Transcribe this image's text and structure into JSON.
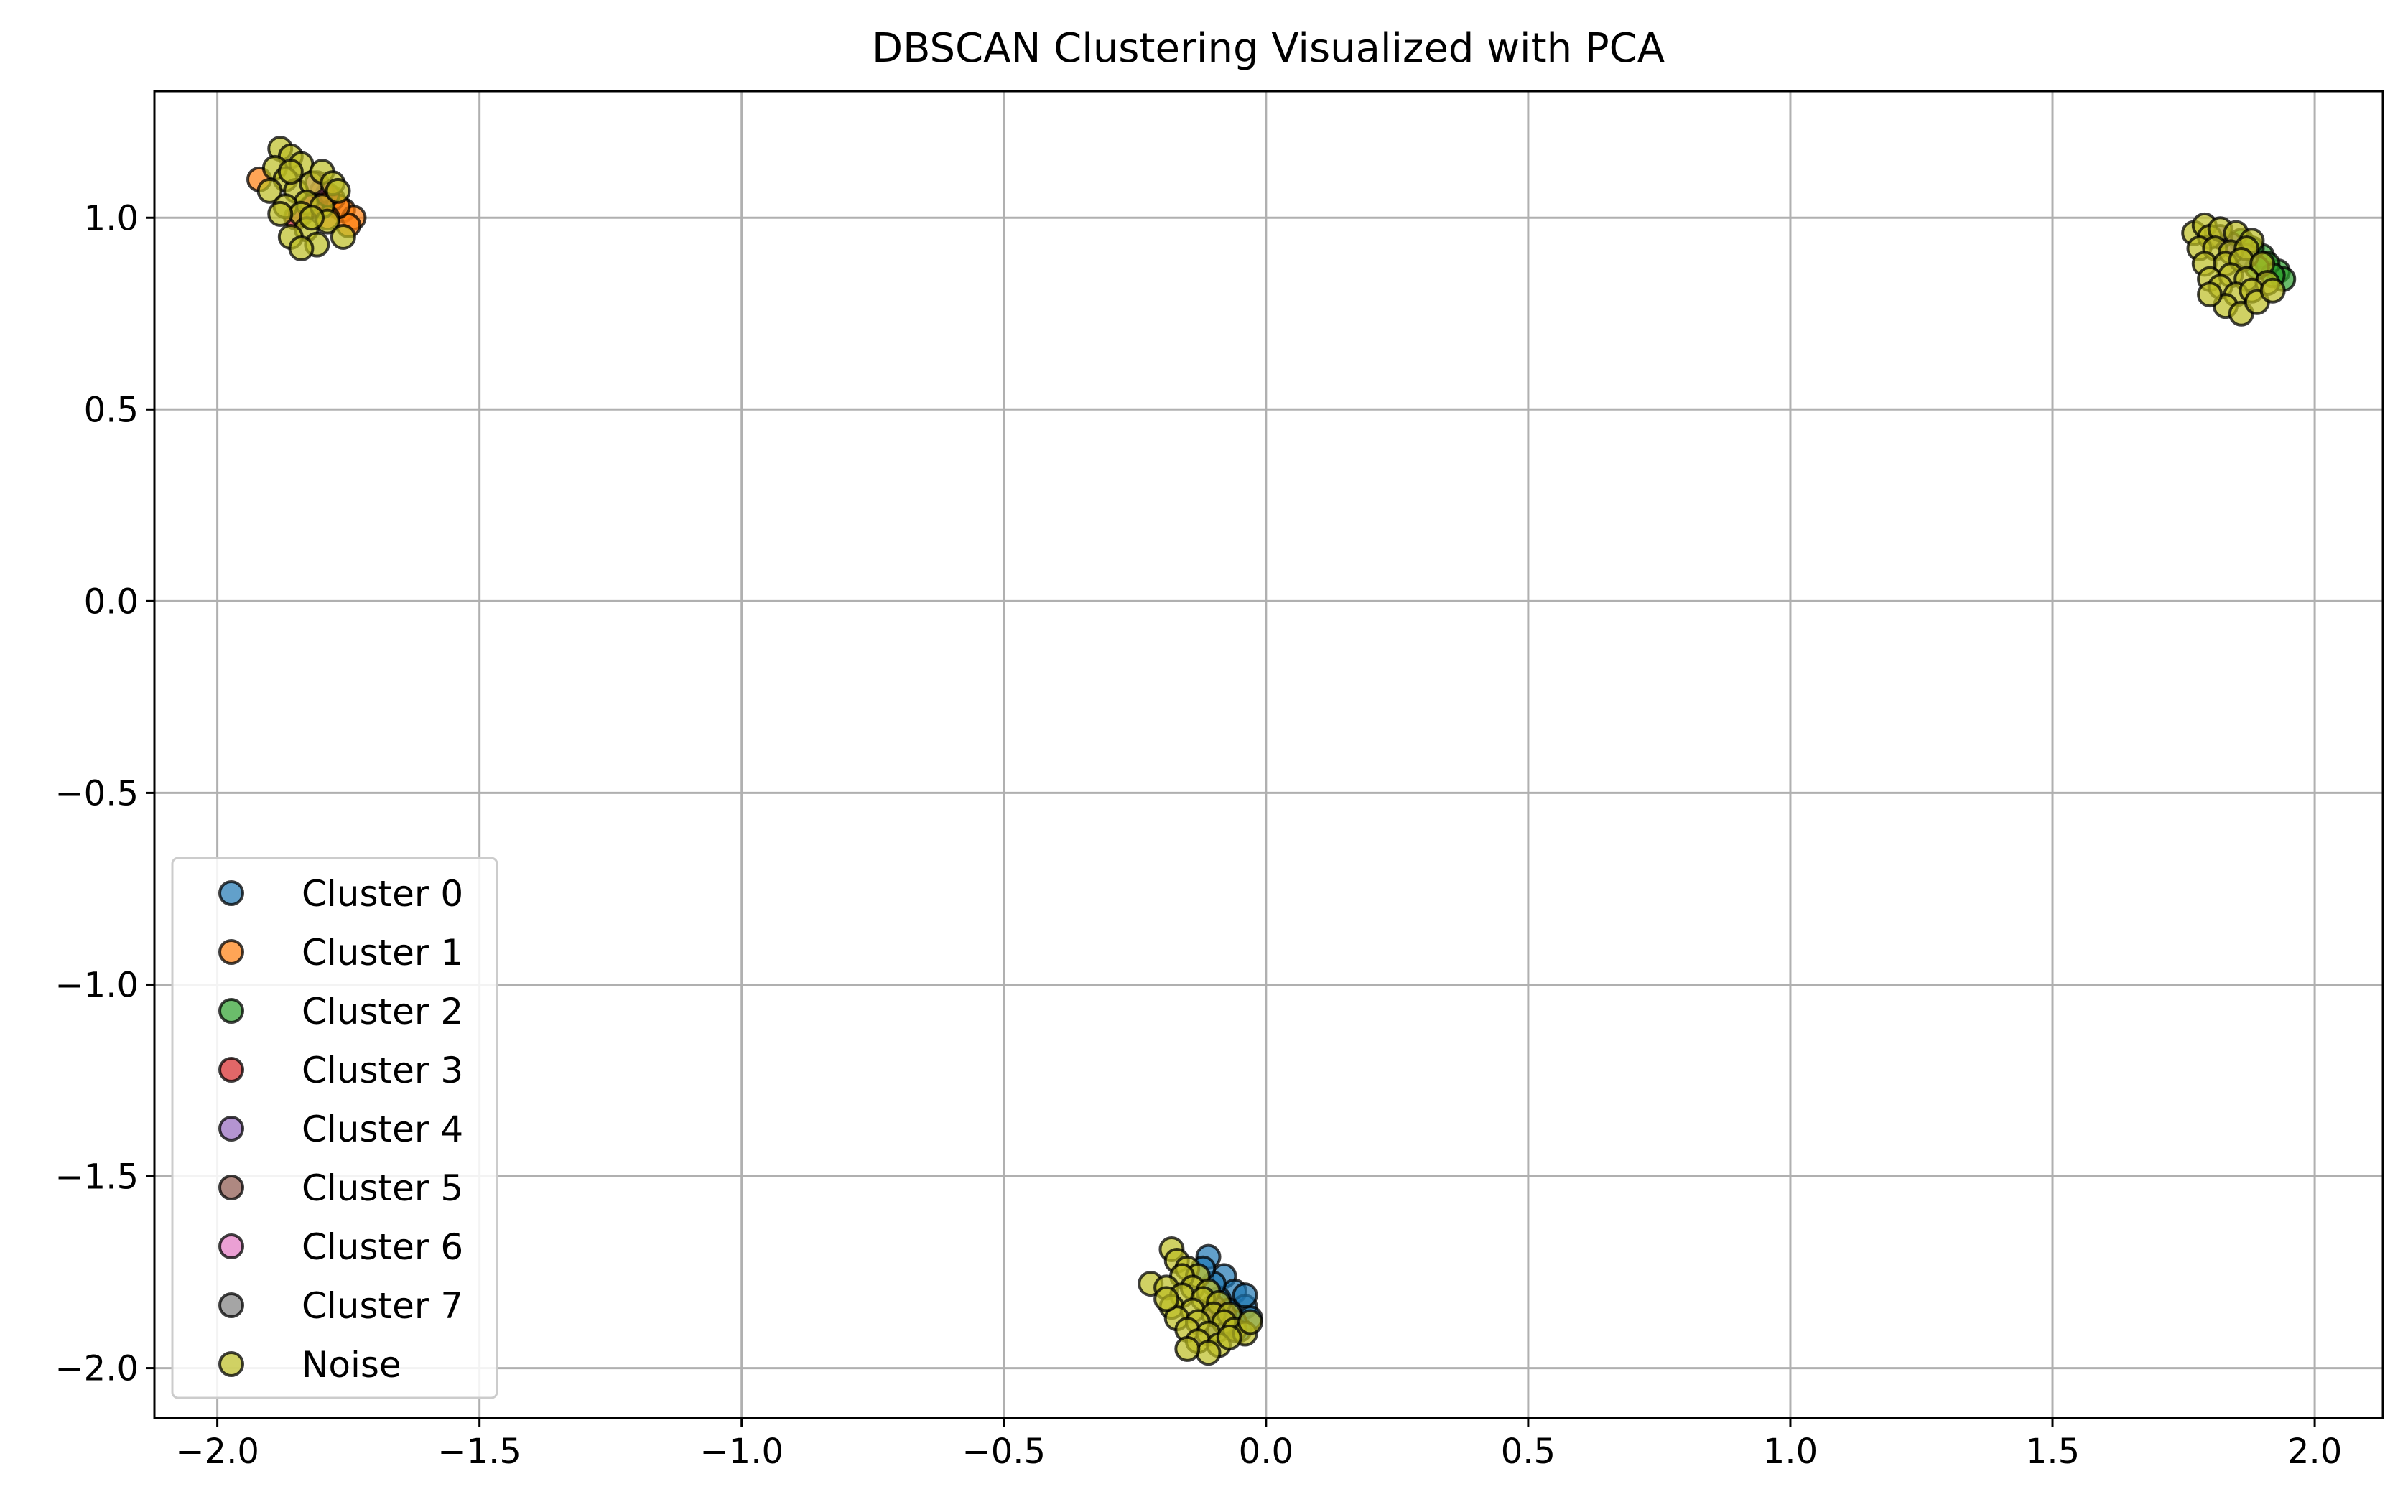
{
  "chart_data": {
    "type": "scatter",
    "title": "DBSCAN Clustering Visualized with PCA",
    "xlabel": "",
    "ylabel": "",
    "xlim": [
      -2.12,
      2.13
    ],
    "ylim": [
      -2.13,
      1.33
    ],
    "xticks": [
      -2.0,
      -1.5,
      -1.0,
      -0.5,
      0.0,
      0.5,
      1.0,
      1.5,
      2.0
    ],
    "xtick_labels": [
      "−2.0",
      "−1.5",
      "−1.0",
      "−0.5",
      "0.0",
      "0.5",
      "1.0",
      "1.5",
      "2.0"
    ],
    "yticks": [
      1.0,
      0.5,
      0.0,
      -0.5,
      -1.0,
      -1.5,
      -2.0
    ],
    "ytick_labels": [
      "1.0",
      "0.5",
      "0.0",
      "−0.5",
      "−1.0",
      "−1.5",
      "−2.0"
    ],
    "grid": true,
    "legend_position": "lower-left",
    "series": [
      {
        "name": "Cluster 0",
        "color": "#1f77b4",
        "points": [
          [
            -0.11,
            -1.71
          ],
          [
            -0.08,
            -1.76
          ],
          [
            -0.06,
            -1.8
          ],
          [
            -0.04,
            -1.84
          ],
          [
            -0.03,
            -1.87
          ],
          [
            -0.05,
            -1.9
          ],
          [
            -0.09,
            -1.82
          ],
          [
            -0.07,
            -1.85
          ],
          [
            -0.1,
            -1.78
          ],
          [
            -0.12,
            -1.74
          ],
          [
            -0.04,
            -1.81
          ],
          [
            -0.06,
            -1.88
          ]
        ]
      },
      {
        "name": "Cluster 1",
        "color": "#ff7f0e",
        "points": [
          [
            -1.92,
            1.1
          ],
          [
            -1.76,
            1.02
          ],
          [
            -1.74,
            1.0
          ],
          [
            -1.78,
            1.05
          ],
          [
            -1.75,
            0.98
          ],
          [
            -1.8,
            1.07
          ],
          [
            -1.77,
            1.03
          ],
          [
            -1.79,
            1.0
          ]
        ]
      },
      {
        "name": "Cluster 2",
        "color": "#2ca02c",
        "points": [
          [
            1.9,
            0.9
          ],
          [
            1.93,
            0.86
          ],
          [
            1.94,
            0.84
          ],
          [
            1.91,
            0.88
          ],
          [
            1.88,
            0.92
          ],
          [
            1.92,
            0.85
          ],
          [
            1.89,
            0.87
          ],
          [
            1.86,
            0.94
          ]
        ]
      },
      {
        "name": "Cluster 3",
        "color": "#d62728",
        "points": [
          [
            -1.82,
            1.03
          ],
          [
            -1.79,
            1.06
          ],
          [
            -1.85,
            1.0
          ]
        ]
      },
      {
        "name": "Cluster 4",
        "color": "#9467bd",
        "points": [
          [
            1.84,
            0.93
          ],
          [
            1.82,
            0.95
          ]
        ]
      },
      {
        "name": "Cluster 5",
        "color": "#8c564b",
        "points": [
          [
            -0.08,
            -1.86
          ],
          [
            -0.1,
            -1.84
          ]
        ]
      },
      {
        "name": "Cluster 6",
        "color": "#e377c2",
        "points": [
          [
            -1.81,
            1.09
          ]
        ]
      },
      {
        "name": "Cluster 7",
        "color": "#7f7f7f",
        "points": [
          [
            1.87,
            0.9
          ],
          [
            -0.09,
            -1.9
          ]
        ]
      },
      {
        "name": "Noise",
        "color": "#bcbd22",
        "points": [
          [
            -1.88,
            1.18
          ],
          [
            -1.86,
            1.16
          ],
          [
            -1.89,
            1.13
          ],
          [
            -1.84,
            1.14
          ],
          [
            -1.87,
            1.1
          ],
          [
            -1.9,
            1.07
          ],
          [
            -1.85,
            1.07
          ],
          [
            -1.82,
            1.09
          ],
          [
            -1.8,
            1.12
          ],
          [
            -1.78,
            1.09
          ],
          [
            -1.83,
            1.04
          ],
          [
            -1.87,
            1.03
          ],
          [
            -1.84,
            1.01
          ],
          [
            -1.8,
            1.03
          ],
          [
            -1.77,
            1.07
          ],
          [
            -1.79,
            0.99
          ],
          [
            -1.83,
            0.97
          ],
          [
            -1.86,
            0.95
          ],
          [
            -1.81,
            0.93
          ],
          [
            -1.76,
            0.95
          ],
          [
            -1.84,
            0.92
          ],
          [
            -1.88,
            1.01
          ],
          [
            -1.82,
            1.0
          ],
          [
            -1.86,
            1.12
          ],
          [
            1.77,
            0.96
          ],
          [
            1.79,
            0.98
          ],
          [
            1.8,
            0.95
          ],
          [
            1.82,
            0.97
          ],
          [
            1.85,
            0.96
          ],
          [
            1.88,
            0.94
          ],
          [
            1.78,
            0.92
          ],
          [
            1.81,
            0.92
          ],
          [
            1.84,
            0.91
          ],
          [
            1.87,
            0.92
          ],
          [
            1.79,
            0.88
          ],
          [
            1.83,
            0.88
          ],
          [
            1.86,
            0.89
          ],
          [
            1.9,
            0.88
          ],
          [
            1.8,
            0.84
          ],
          [
            1.84,
            0.85
          ],
          [
            1.87,
            0.84
          ],
          [
            1.91,
            0.83
          ],
          [
            1.82,
            0.82
          ],
          [
            1.85,
            0.8
          ],
          [
            1.88,
            0.81
          ],
          [
            1.83,
            0.77
          ],
          [
            1.86,
            0.75
          ],
          [
            1.89,
            0.78
          ],
          [
            1.92,
            0.81
          ],
          [
            1.8,
            0.8
          ],
          [
            -0.18,
            -1.69
          ],
          [
            -0.17,
            -1.72
          ],
          [
            -0.15,
            -1.74
          ],
          [
            -0.13,
            -1.76
          ],
          [
            -0.16,
            -1.76
          ],
          [
            -0.22,
            -1.78
          ],
          [
            -0.19,
            -1.79
          ],
          [
            -0.14,
            -1.79
          ],
          [
            -0.11,
            -1.8
          ],
          [
            -0.16,
            -1.81
          ],
          [
            -0.12,
            -1.82
          ],
          [
            -0.09,
            -1.83
          ],
          [
            -0.18,
            -1.84
          ],
          [
            -0.14,
            -1.85
          ],
          [
            -0.1,
            -1.86
          ],
          [
            -0.07,
            -1.86
          ],
          [
            -0.17,
            -1.87
          ],
          [
            -0.13,
            -1.88
          ],
          [
            -0.08,
            -1.88
          ],
          [
            -0.15,
            -1.9
          ],
          [
            -0.11,
            -1.91
          ],
          [
            -0.06,
            -1.9
          ],
          [
            -0.04,
            -1.91
          ],
          [
            -0.13,
            -1.93
          ],
          [
            -0.09,
            -1.94
          ],
          [
            -0.11,
            -1.96
          ],
          [
            -0.07,
            -1.92
          ],
          [
            -0.15,
            -1.95
          ],
          [
            -0.19,
            -1.82
          ],
          [
            -0.03,
            -1.88
          ]
        ]
      }
    ]
  }
}
